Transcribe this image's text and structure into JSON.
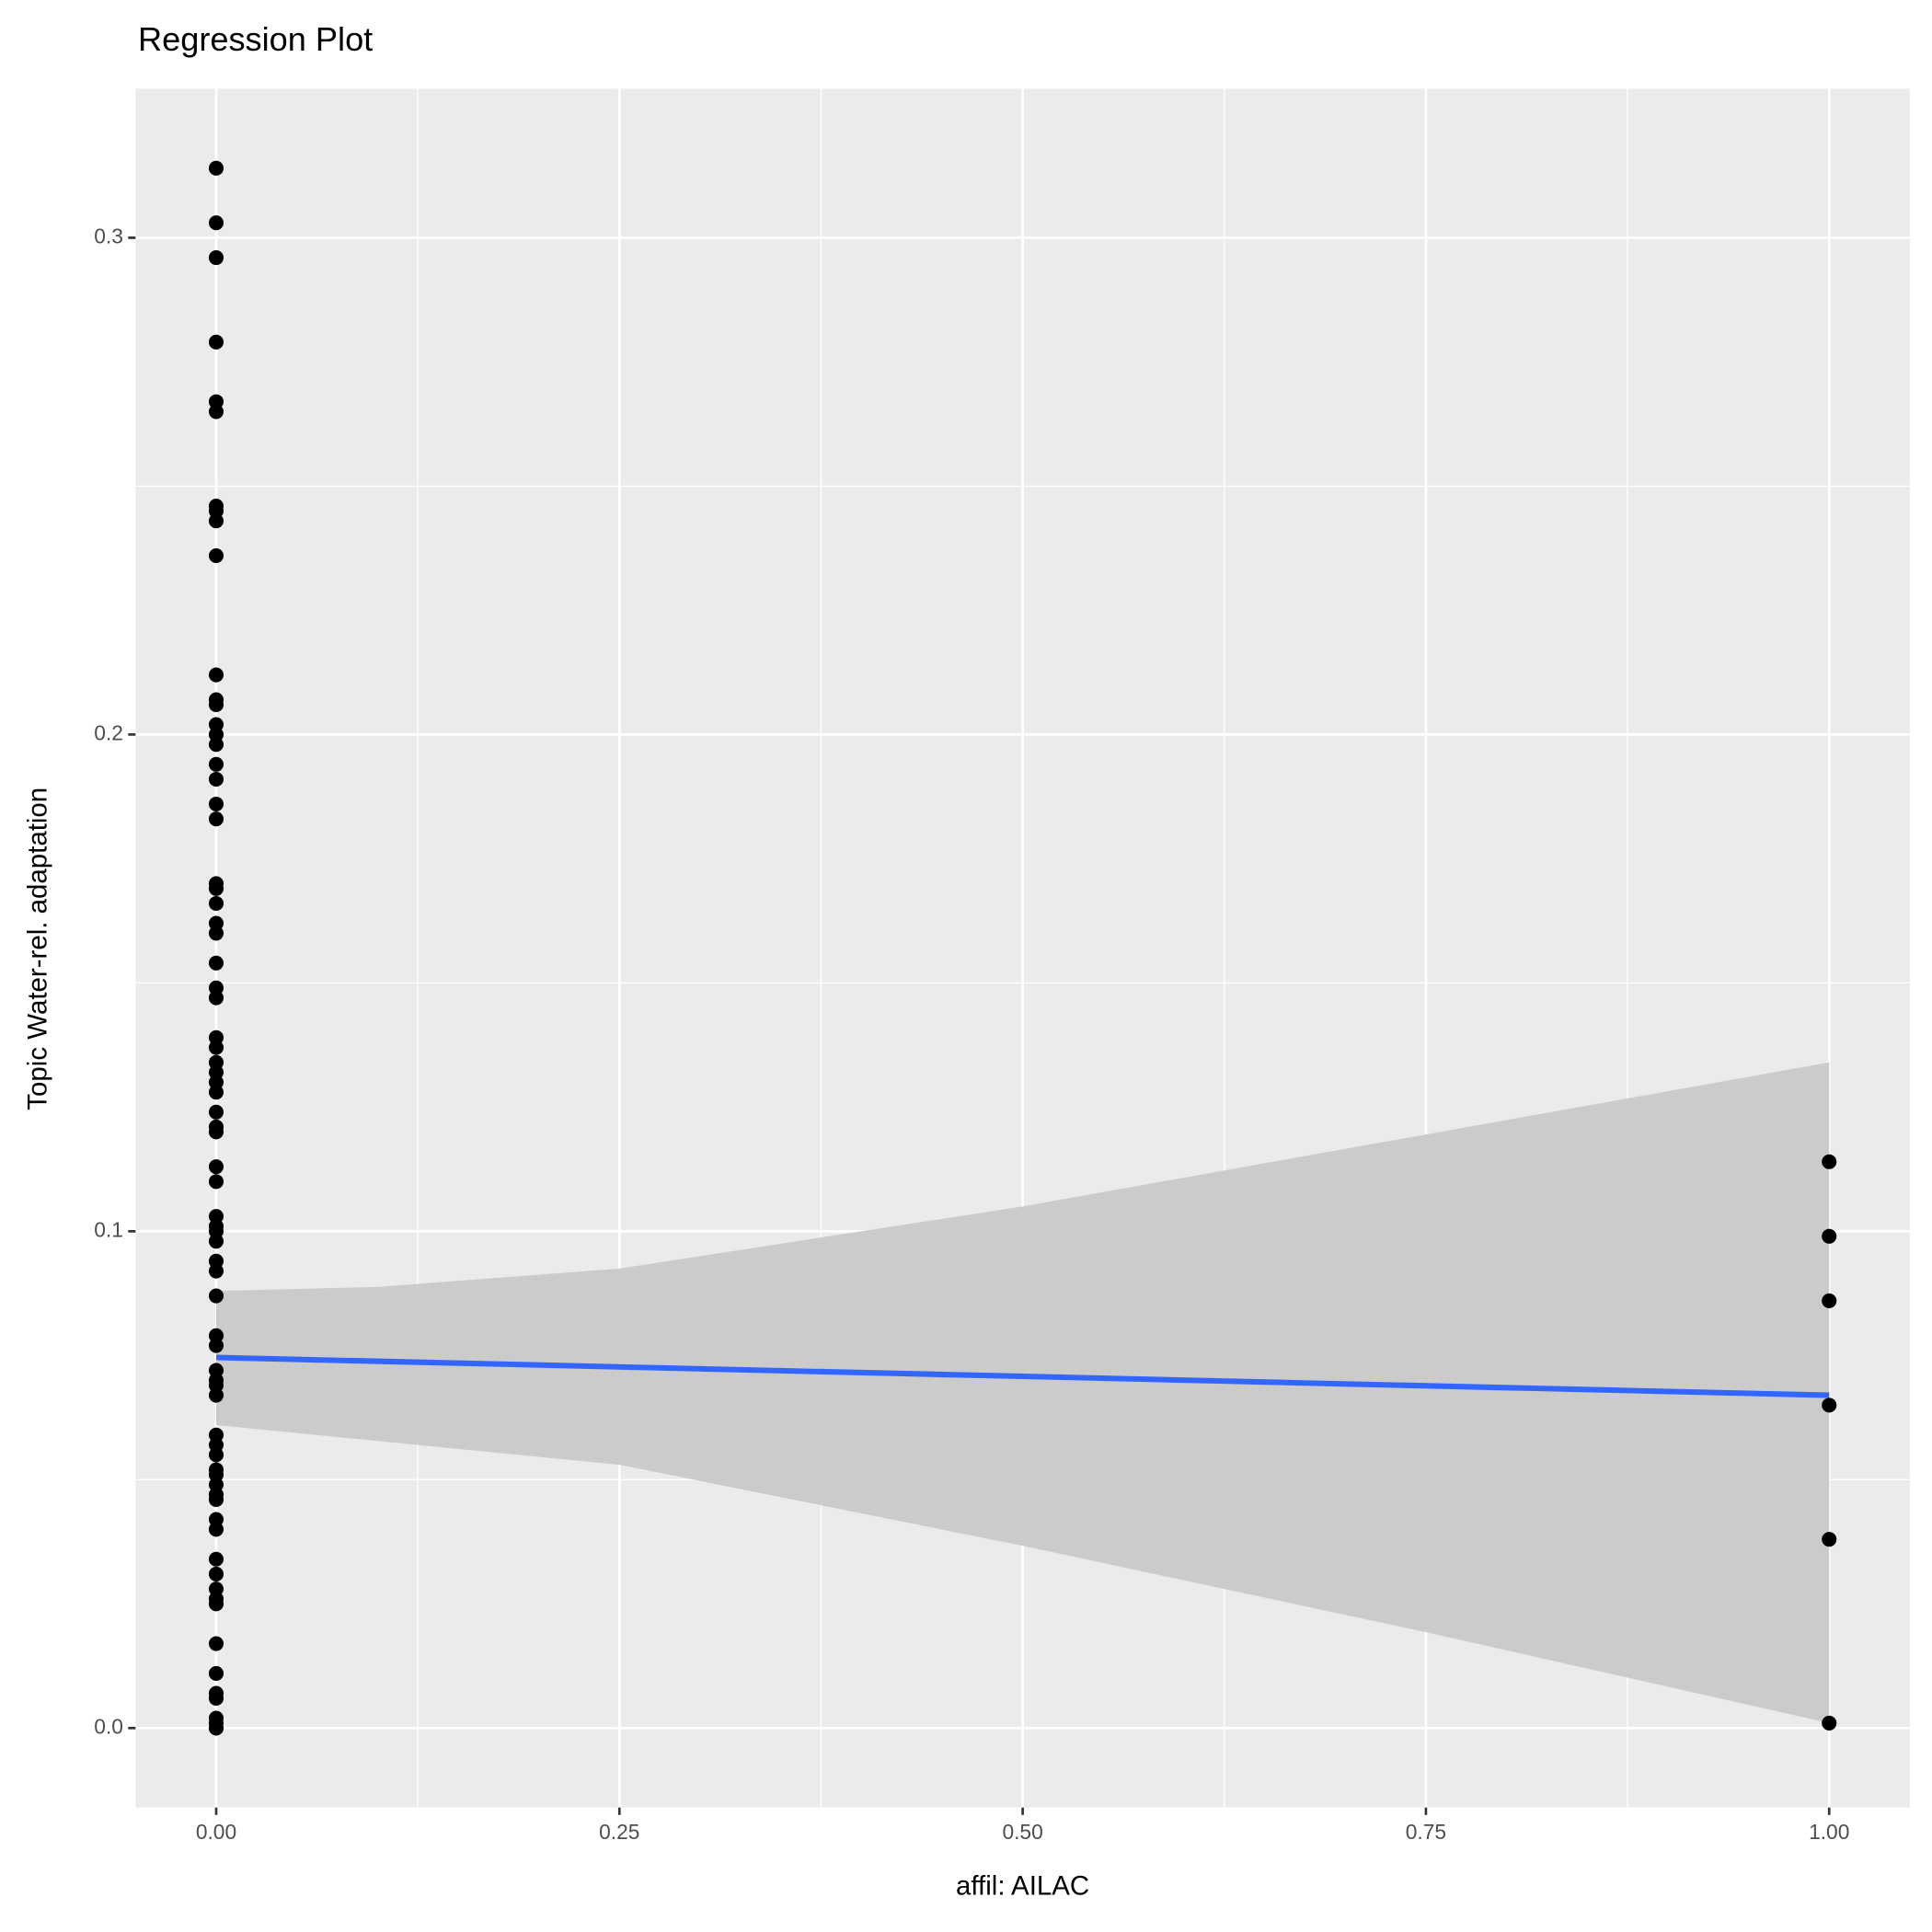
{
  "chart_data": {
    "type": "scatter",
    "title": "Regression Plot",
    "x_label": "affil: AILAC",
    "y_label": "Topic Water-rel. adaptation",
    "x": [
      0,
      0,
      0,
      0,
      0,
      0,
      0,
      0,
      0,
      0,
      0,
      0,
      0,
      0,
      0,
      0,
      0,
      0,
      0,
      0,
      0,
      0,
      0,
      0,
      0,
      0,
      0,
      0,
      0,
      0,
      0,
      0,
      0,
      0,
      0,
      0,
      0,
      0,
      0,
      0,
      0,
      0,
      0,
      0,
      0,
      0,
      0,
      0,
      0,
      0,
      0,
      0,
      0,
      0,
      0,
      0,
      0,
      0,
      0,
      0,
      0,
      0,
      0,
      0,
      0,
      0,
      0,
      0,
      0,
      0,
      0,
      0,
      0,
      0,
      0,
      1,
      1,
      1,
      1,
      1,
      1
    ],
    "values": [
      0.314,
      0.303,
      0.296,
      0.279,
      0.267,
      0.265,
      0.246,
      0.245,
      0.243,
      0.236,
      0.212,
      0.207,
      0.206,
      0.202,
      0.2,
      0.198,
      0.194,
      0.191,
      0.186,
      0.183,
      0.17,
      0.169,
      0.166,
      0.162,
      0.16,
      0.154,
      0.149,
      0.147,
      0.139,
      0.137,
      0.134,
      0.132,
      0.13,
      0.128,
      0.124,
      0.121,
      0.12,
      0.113,
      0.11,
      0.103,
      0.101,
      0.1,
      0.098,
      0.094,
      0.092,
      0.087,
      0.079,
      0.077,
      0.072,
      0.07,
      0.069,
      0.067,
      0.059,
      0.057,
      0.055,
      0.052,
      0.051,
      0.049,
      0.047,
      0.046,
      0.042,
      0.04,
      0.034,
      0.031,
      0.028,
      0.026,
      0.025,
      0.017,
      0.011,
      0.007,
      0.006,
      0.002,
      0.001,
      0,
      0,
      0.114,
      0.099,
      0.086,
      0.065,
      0.038,
      0.001
    ],
    "color": "#000000",
    "fit": {
      "x": [
        0,
        1
      ],
      "values": [
        0.0746,
        0.067
      ],
      "color": "#3366ff"
    },
    "band": {
      "x": [
        0,
        0.1,
        0.25,
        0.5,
        0.75,
        1
      ],
      "upper": [
        0.088,
        0.0888,
        0.0925,
        0.105,
        0.1195,
        0.134
      ],
      "lower": [
        0.061,
        0.0578,
        0.053,
        0.0367,
        0.0193,
        0.001
      ],
      "color": "#cbcbcb"
    },
    "xlim": [
      -0.05,
      1.05
    ],
    "ylim": [
      -0.016,
      0.33
    ],
    "xticks": [
      {
        "value": 0,
        "label": "0.00"
      },
      0.25,
      {
        "value": 0.5,
        "label": "0.50"
      },
      0.75,
      {
        "value": 1,
        "label": "1.00"
      }
    ],
    "yticks": [
      {
        "value": 0,
        "label": "0.0"
      },
      0.1,
      0.2,
      0.3
    ],
    "xminor": [
      0.125,
      0.375,
      0.625,
      0.875
    ],
    "yminor": [
      0.05,
      0.15,
      0.25
    ],
    "grid": true
  }
}
